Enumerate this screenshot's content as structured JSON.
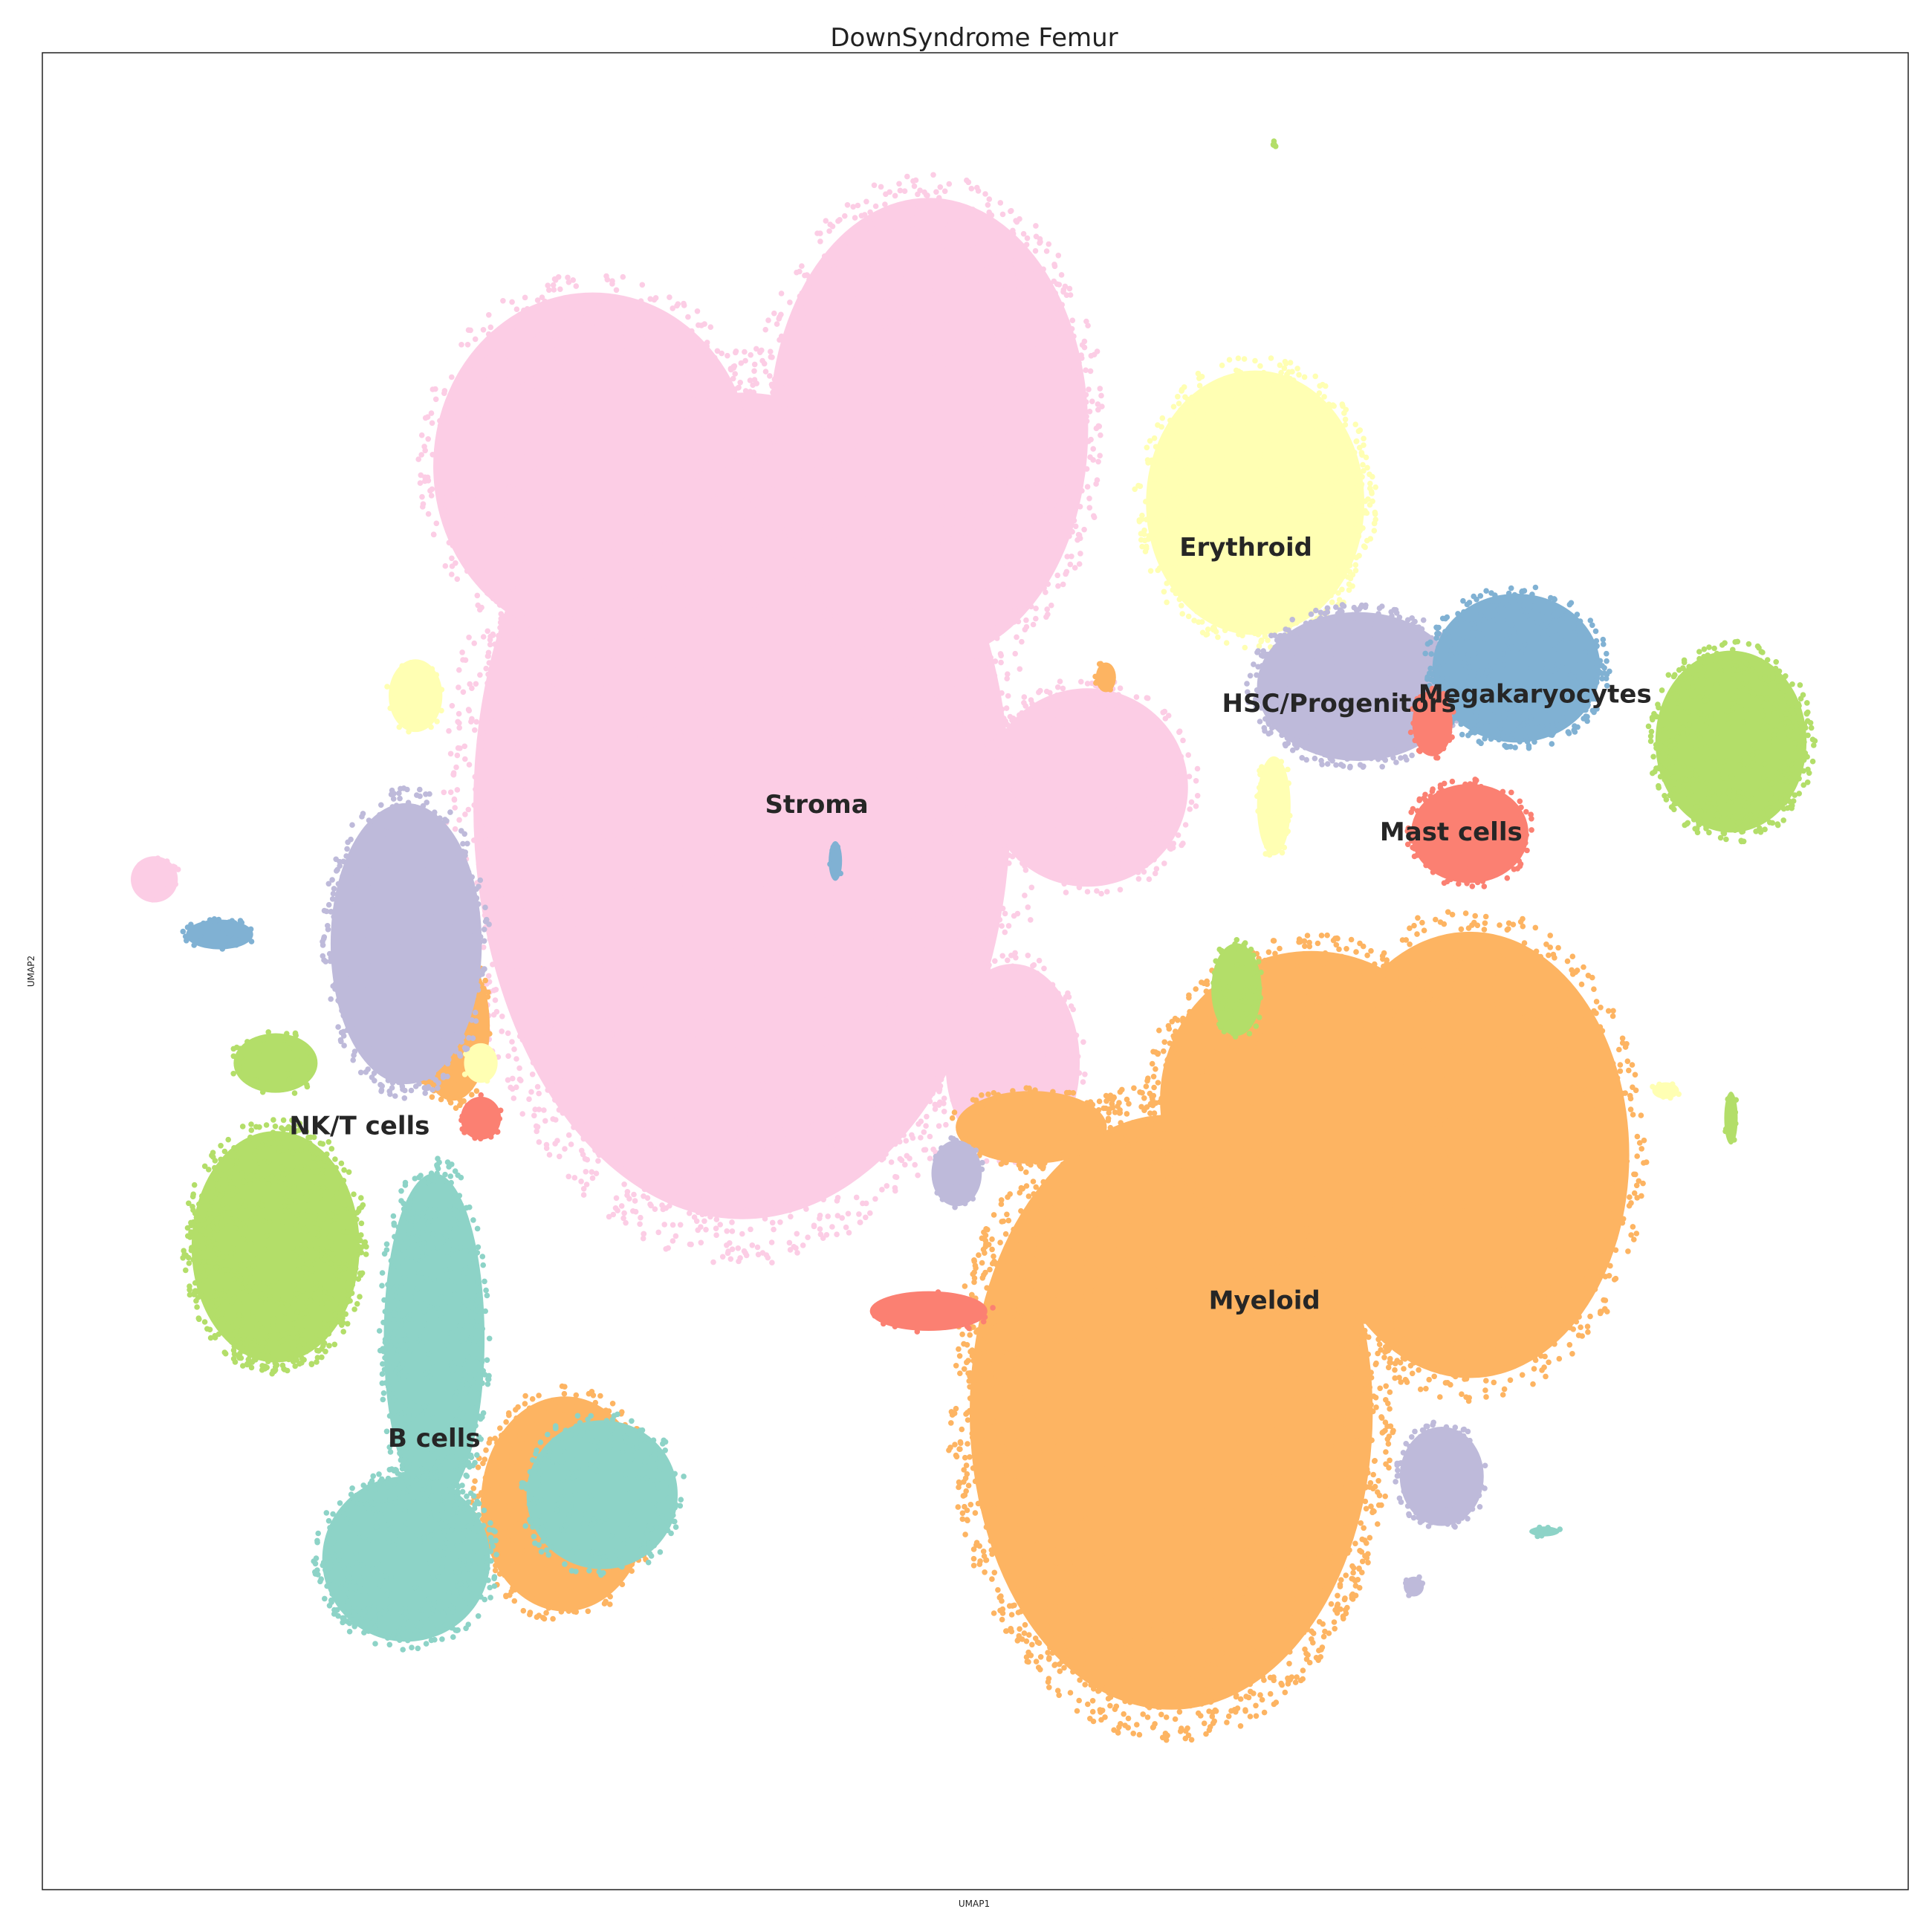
{
  "chart_data": {
    "type": "scatter",
    "title": "DownSyndrome Femur",
    "xlabel": "UMAP1",
    "ylabel": "UMAP2",
    "xticks": [],
    "yticks": [],
    "legend": "none (labels placed on clusters)",
    "grid": false,
    "xlim": [
      0,
      100
    ],
    "ylim": [
      0,
      100
    ],
    "series": [
      {
        "name": "Stroma",
        "color": "#fccde5",
        "centroid": [
          41.5,
          59.0
        ],
        "clusters": [
          {
            "c": [
              37.5,
              59.0
            ],
            "r": [
              16.0,
              25.0
            ],
            "n": 2600
          },
          {
            "c": [
              47.5,
              79.5
            ],
            "r": [
              9.5,
              14.0
            ],
            "n": 1100
          },
          {
            "c": [
              29.5,
              77.5
            ],
            "r": [
              9.5,
              10.5
            ],
            "n": 700
          },
          {
            "c": [
              56.0,
              60.0
            ],
            "r": [
              6.0,
              6.0
            ],
            "n": 300
          },
          {
            "c": [
              52.0,
              45.0
            ],
            "r": [
              4.0,
              6.0
            ],
            "n": 200
          },
          {
            "c": [
              6.0,
              55.0
            ],
            "r": [
              1.4,
              1.4
            ],
            "n": 20
          }
        ]
      },
      {
        "name": "Myeloid",
        "color": "#fdb462",
        "centroid": [
          65.5,
          32.0
        ],
        "clusters": [
          {
            "c": [
              60.5,
              26.0
            ],
            "r": [
              12.0,
              18.0
            ],
            "n": 2600
          },
          {
            "c": [
              76.5,
              40.0
            ],
            "r": [
              9.5,
              13.5
            ],
            "n": 1000
          },
          {
            "c": [
              68.0,
              43.0
            ],
            "r": [
              9.0,
              9.0
            ],
            "n": 900
          },
          {
            "c": [
              53.0,
              41.5
            ],
            "r": [
              4.5,
              2.2
            ],
            "n": 120
          },
          {
            "c": [
              22.0,
              47.0
            ],
            "r": [
              2.2,
              4.5
            ],
            "n": 180
          },
          {
            "c": [
              28.0,
              21.0
            ],
            "r": [
              5.0,
              6.5
            ],
            "n": 320
          },
          {
            "c": [
              57.0,
              66.0
            ],
            "r": [
              0.6,
              0.9
            ],
            "n": 10
          }
        ]
      },
      {
        "name": "Erythroid",
        "color": "#ffffb3",
        "centroid": [
          64.5,
          73.0
        ],
        "clusters": [
          {
            "c": [
              65.0,
              75.5
            ],
            "r": [
              6.5,
              8.0
            ],
            "n": 700
          },
          {
            "c": [
              66.0,
              59.0
            ],
            "r": [
              1.0,
              3.0
            ],
            "n": 40
          },
          {
            "c": [
              20.0,
              65.0
            ],
            "r": [
              1.6,
              2.2
            ],
            "n": 30
          },
          {
            "c": [
              23.5,
              45.0
            ],
            "r": [
              1.0,
              1.2
            ],
            "n": 12
          },
          {
            "c": [
              87.0,
              43.5
            ],
            "r": [
              0.8,
              0.5
            ],
            "n": 8
          }
        ]
      },
      {
        "name": "HSC/Progenitors",
        "color": "#bebada",
        "centroid": [
          69.5,
          64.5
        ],
        "clusters": [
          {
            "c": [
              70.5,
              65.5
            ],
            "r": [
              6.0,
              4.5
            ],
            "n": 600
          },
          {
            "c": [
              19.5,
              51.5
            ],
            "r": [
              4.5,
              8.5
            ],
            "n": 550
          },
          {
            "c": [
              75.0,
              22.5
            ],
            "r": [
              2.5,
              3.0
            ],
            "n": 160
          },
          {
            "c": [
              49.0,
              39.0
            ],
            "r": [
              1.5,
              2.0
            ],
            "n": 40
          },
          {
            "c": [
              73.5,
              16.5
            ],
            "r": [
              0.6,
              0.6
            ],
            "n": 8
          }
        ]
      },
      {
        "name": "Megakaryocytes",
        "color": "#80b1d3",
        "centroid": [
          80.0,
          65.0
        ],
        "clusters": [
          {
            "c": [
              79.0,
              66.5
            ],
            "r": [
              5.0,
              4.5
            ],
            "n": 400
          },
          {
            "c": [
              9.5,
              52.0
            ],
            "r": [
              2.0,
              0.9
            ],
            "n": 35
          },
          {
            "c": [
              42.5,
              56.0
            ],
            "r": [
              0.4,
              1.2
            ],
            "n": 6
          }
        ]
      },
      {
        "name": "Mast cells",
        "color": "#fb8072",
        "centroid": [
          75.5,
          57.5
        ],
        "clusters": [
          {
            "c": [
              76.5,
              57.5
            ],
            "r": [
              3.5,
              3.0
            ],
            "n": 220
          },
          {
            "c": [
              74.5,
              63.5
            ],
            "r": [
              1.2,
              2.0
            ],
            "n": 40
          },
          {
            "c": [
              23.5,
              42.0
            ],
            "r": [
              1.2,
              1.3
            ],
            "n": 35
          },
          {
            "c": [
              47.5,
              31.5
            ],
            "r": [
              3.5,
              1.2
            ],
            "n": 30
          }
        ]
      },
      {
        "name": "NK/T cells",
        "color": "#b3de69",
        "centroid": [
          17.0,
          41.5
        ],
        "clusters": [
          {
            "c": [
              12.5,
              35.0
            ],
            "r": [
              5.0,
              7.0
            ],
            "n": 650
          },
          {
            "c": [
              90.5,
              62.5
            ],
            "r": [
              4.5,
              5.5
            ],
            "n": 450
          },
          {
            "c": [
              64.0,
              49.0
            ],
            "r": [
              1.5,
              2.8
            ],
            "n": 60
          },
          {
            "c": [
              12.5,
              45.0
            ],
            "r": [
              2.5,
              1.8
            ],
            "n": 40
          },
          {
            "c": [
              66.0,
              95.0
            ],
            "r": [
              0.2,
              0.2
            ],
            "n": 2
          },
          {
            "c": [
              90.5,
              42.0
            ],
            "r": [
              0.4,
              1.6
            ],
            "n": 10
          }
        ]
      },
      {
        "name": "B cells",
        "color": "#8dd3c7",
        "centroid": [
          21.0,
          24.5
        ],
        "clusters": [
          {
            "c": [
              21.0,
              30.0
            ],
            "r": [
              3.0,
              10.0
            ],
            "n": 420
          },
          {
            "c": [
              19.5,
              18.0
            ],
            "r": [
              5.0,
              5.0
            ],
            "n": 380
          },
          {
            "c": [
              30.0,
              21.5
            ],
            "r": [
              4.5,
              4.5
            ],
            "n": 220
          },
          {
            "c": [
              80.5,
              19.5
            ],
            "r": [
              0.9,
              0.3
            ],
            "n": 6
          }
        ]
      }
    ]
  }
}
